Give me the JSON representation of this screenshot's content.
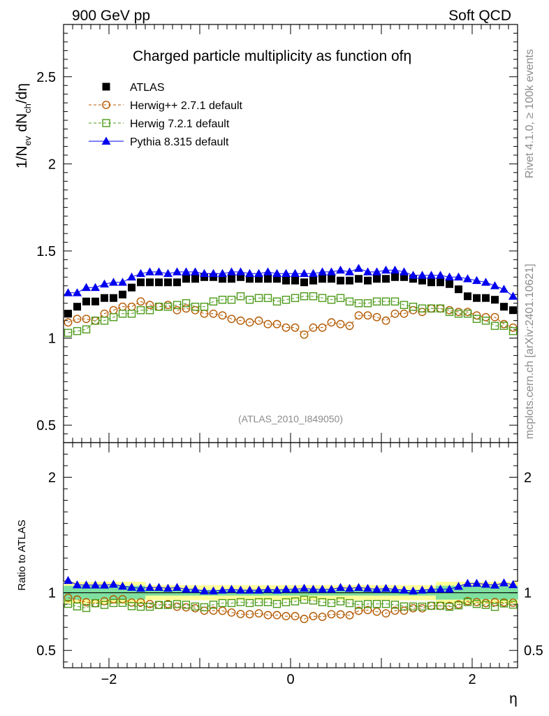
{
  "chart_data": {
    "type": "scatter",
    "header_left": "900 GeV pp",
    "header_right": "Soft QCD",
    "title_prefix": "Charged particle multiplicity as function of",
    "title_symbol": "η",
    "xlabel": "η",
    "ylabel_parts": [
      "1/N",
      "ev",
      " dN",
      "ch",
      "/dη"
    ],
    "ratio_ylabel": "Ratio to ATLAS",
    "analysis_label": "(ATLAS_2010_I849050)",
    "side_label_top": "Rivet 4.1.0, ≥ 100k events",
    "side_label_bottom": "mcplots.cern.ch [arXiv:2401.10621]",
    "xlim": [
      -2.5,
      2.5
    ],
    "ylim": [
      0.4,
      2.8
    ],
    "ratio_ylim": [
      0.35,
      2.3
    ],
    "main_ticks": [
      "0.5",
      "1",
      "1.5",
      "2",
      "2.5"
    ],
    "ratio_ticks": [
      "0.5",
      "1",
      "2"
    ],
    "x_ticks": [
      "−2",
      "0",
      "2"
    ],
    "colors": {
      "atlas": "#000000",
      "herwigpp": "#b35900",
      "herwig7": "#4d9a1a",
      "pythia": "#0000ee",
      "band_green": "#7fe0a0",
      "band_yellow": "#ffff99"
    },
    "x": [
      -2.45,
      -2.35,
      -2.25,
      -2.15,
      -2.05,
      -1.95,
      -1.85,
      -1.75,
      -1.65,
      -1.55,
      -1.45,
      -1.35,
      -1.25,
      -1.15,
      -1.05,
      -0.95,
      -0.85,
      -0.75,
      -0.65,
      -0.55,
      -0.45,
      -0.35,
      -0.25,
      -0.15,
      -0.05,
      0.05,
      0.15,
      0.25,
      0.35,
      0.45,
      0.55,
      0.65,
      0.75,
      0.85,
      0.95,
      1.05,
      1.15,
      1.25,
      1.35,
      1.45,
      1.55,
      1.65,
      1.75,
      1.85,
      1.95,
      2.05,
      2.15,
      2.25,
      2.35,
      2.45
    ],
    "series": [
      {
        "name": "ATLAS",
        "key": "atlas",
        "marker": "square-filled",
        "values": [
          1.14,
          1.18,
          1.21,
          1.21,
          1.23,
          1.23,
          1.25,
          1.29,
          1.32,
          1.32,
          1.32,
          1.32,
          1.32,
          1.34,
          1.34,
          1.35,
          1.35,
          1.34,
          1.34,
          1.35,
          1.34,
          1.34,
          1.34,
          1.34,
          1.33,
          1.33,
          1.32,
          1.33,
          1.34,
          1.34,
          1.33,
          1.33,
          1.34,
          1.33,
          1.34,
          1.34,
          1.35,
          1.35,
          1.34,
          1.33,
          1.32,
          1.32,
          1.31,
          1.28,
          1.24,
          1.23,
          1.23,
          1.22,
          1.18,
          1.16
        ]
      },
      {
        "name": "Herwig++ 2.7.1 default",
        "key": "herwigpp",
        "marker": "circle-open",
        "values": [
          1.09,
          1.11,
          1.11,
          1.1,
          1.14,
          1.16,
          1.18,
          1.18,
          1.21,
          1.19,
          1.18,
          1.19,
          1.16,
          1.17,
          1.16,
          1.14,
          1.14,
          1.13,
          1.11,
          1.1,
          1.09,
          1.1,
          1.08,
          1.08,
          1.06,
          1.06,
          1.02,
          1.06,
          1.06,
          1.09,
          1.08,
          1.07,
          1.13,
          1.13,
          1.12,
          1.1,
          1.14,
          1.14,
          1.16,
          1.15,
          1.17,
          1.17,
          1.16,
          1.15,
          1.15,
          1.13,
          1.12,
          1.12,
          1.08,
          1.06
        ]
      },
      {
        "name": "Herwig 7.2.1 default",
        "key": "herwig7",
        "marker": "square-open",
        "values": [
          1.03,
          1.04,
          1.05,
          1.1,
          1.1,
          1.12,
          1.14,
          1.14,
          1.16,
          1.16,
          1.18,
          1.18,
          1.19,
          1.2,
          1.18,
          1.18,
          1.21,
          1.22,
          1.22,
          1.24,
          1.22,
          1.23,
          1.23,
          1.21,
          1.22,
          1.23,
          1.24,
          1.24,
          1.23,
          1.22,
          1.23,
          1.21,
          1.2,
          1.2,
          1.21,
          1.21,
          1.21,
          1.19,
          1.18,
          1.17,
          1.17,
          1.17,
          1.15,
          1.14,
          1.14,
          1.11,
          1.1,
          1.07,
          1.07,
          1.04
        ]
      },
      {
        "name": "Pythia 8.315 default",
        "key": "pythia",
        "marker": "triangle-filled",
        "values": [
          1.26,
          1.26,
          1.29,
          1.29,
          1.31,
          1.32,
          1.32,
          1.35,
          1.37,
          1.38,
          1.38,
          1.37,
          1.38,
          1.38,
          1.38,
          1.37,
          1.37,
          1.37,
          1.38,
          1.38,
          1.37,
          1.37,
          1.38,
          1.37,
          1.37,
          1.37,
          1.37,
          1.37,
          1.38,
          1.38,
          1.39,
          1.38,
          1.4,
          1.38,
          1.38,
          1.39,
          1.39,
          1.38,
          1.36,
          1.36,
          1.36,
          1.36,
          1.35,
          1.35,
          1.34,
          1.33,
          1.32,
          1.3,
          1.28,
          1.24
        ]
      }
    ]
  }
}
